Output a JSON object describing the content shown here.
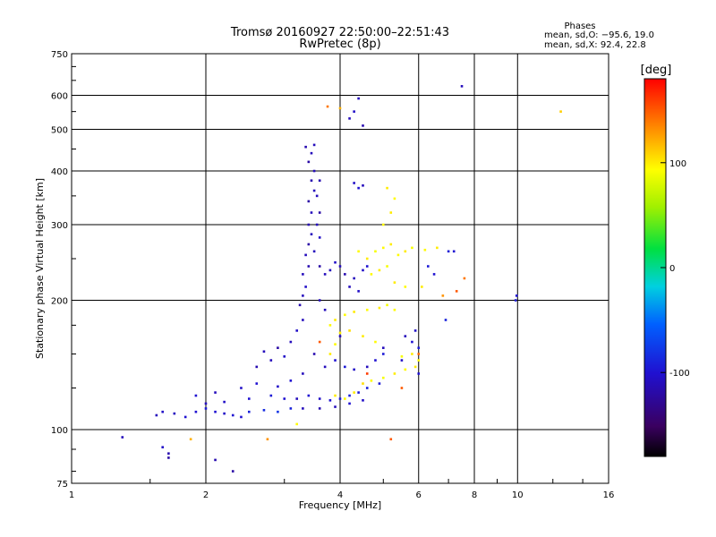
{
  "chart_data": {
    "type": "scatter",
    "title": "Tromsø 20160927 22:50:00–22:51:43",
    "subtitle": "RwPretec (8p)",
    "stats": {
      "heading": "Phases",
      "line1": "mean, sd,O: −95.6, 19.0",
      "line2": "mean, sd,X:  92.4, 22.8"
    },
    "xlabel": "Frequency [MHz]",
    "ylabel": "Stationary phase Virtual Height [km]",
    "x_scale": "log",
    "y_scale": "log",
    "xlim": [
      1,
      16
    ],
    "ylim": [
      75,
      750
    ],
    "x_ticks": [
      "1",
      "2",
      "4",
      "6",
      "8",
      "10",
      "16"
    ],
    "y_ticks": [
      "75",
      "100",
      "200",
      "300",
      "400",
      "500",
      "600",
      "750"
    ],
    "grid": true,
    "colorbar": {
      "label": "[deg]",
      "range": [
        -180,
        180
      ],
      "ticks": [
        "100",
        "0",
        "-100"
      ]
    },
    "series": [
      {
        "mode": "O",
        "mean_phase": -95.6,
        "points": [
          [
            1.3,
            96,
            -110
          ],
          [
            1.6,
            91,
            -105
          ],
          [
            1.65,
            88,
            -115
          ],
          [
            1.65,
            86,
            -120
          ],
          [
            2.1,
            85,
            -115
          ],
          [
            2.3,
            80,
            -120
          ],
          [
            1.55,
            108,
            -110
          ],
          [
            1.6,
            110,
            -105
          ],
          [
            1.7,
            109,
            -108
          ],
          [
            1.8,
            107,
            -100
          ],
          [
            1.9,
            110,
            -100
          ],
          [
            2.0,
            112,
            -95
          ],
          [
            2.1,
            110,
            -100
          ],
          [
            2.2,
            109,
            -105
          ],
          [
            2.3,
            108,
            -100
          ],
          [
            2.4,
            107,
            -100
          ],
          [
            2.5,
            110,
            -90
          ],
          [
            2.7,
            111,
            -85
          ],
          [
            2.9,
            110,
            -80
          ],
          [
            3.1,
            112,
            -90
          ],
          [
            2.0,
            115,
            -110
          ],
          [
            2.2,
            116,
            -105
          ],
          [
            2.5,
            118,
            -100
          ],
          [
            2.8,
            120,
            -95
          ],
          [
            3.0,
            118,
            -100
          ],
          [
            3.2,
            118,
            -110
          ],
          [
            1.9,
            120,
            -100
          ],
          [
            2.1,
            122,
            -110
          ],
          [
            2.4,
            125,
            -105
          ],
          [
            2.6,
            128,
            -100
          ],
          [
            2.9,
            126,
            -105
          ],
          [
            3.1,
            130,
            -100
          ],
          [
            3.3,
            135,
            -110
          ],
          [
            2.6,
            140,
            -115
          ],
          [
            2.8,
            145,
            -110
          ],
          [
            3.0,
            148,
            -105
          ],
          [
            2.7,
            152,
            -110
          ],
          [
            2.9,
            155,
            -120
          ],
          [
            3.1,
            160,
            -110
          ],
          [
            3.2,
            170,
            -105
          ],
          [
            3.3,
            180,
            -110
          ],
          [
            3.25,
            195,
            -115
          ],
          [
            3.3,
            205,
            -110
          ],
          [
            3.35,
            215,
            -105
          ],
          [
            3.3,
            230,
            -110
          ],
          [
            3.4,
            240,
            -115
          ],
          [
            3.35,
            255,
            -110
          ],
          [
            3.4,
            270,
            -120
          ],
          [
            3.45,
            285,
            -110
          ],
          [
            3.4,
            300,
            -115
          ],
          [
            3.45,
            320,
            -110
          ],
          [
            3.4,
            340,
            -120
          ],
          [
            3.5,
            360,
            -110
          ],
          [
            3.45,
            380,
            -115
          ],
          [
            3.5,
            400,
            -110
          ],
          [
            3.4,
            420,
            -120
          ],
          [
            3.45,
            440,
            -110
          ],
          [
            3.35,
            455,
            -115
          ],
          [
            3.5,
            460,
            -110
          ],
          [
            3.6,
            380,
            -115
          ],
          [
            3.55,
            350,
            -110
          ],
          [
            3.6,
            320,
            -120
          ],
          [
            3.55,
            300,
            -110
          ],
          [
            3.6,
            280,
            -105
          ],
          [
            3.5,
            260,
            -110
          ],
          [
            3.6,
            240,
            -120
          ],
          [
            3.7,
            230,
            -110
          ],
          [
            3.8,
            235,
            -110
          ],
          [
            3.9,
            245,
            -105
          ],
          [
            4.0,
            240,
            -110
          ],
          [
            4.1,
            230,
            -115
          ],
          [
            4.3,
            225,
            -110
          ],
          [
            4.5,
            235,
            -105
          ],
          [
            4.6,
            240,
            -100
          ],
          [
            4.2,
            215,
            -110
          ],
          [
            4.4,
            210,
            -105
          ],
          [
            3.6,
            200,
            -110
          ],
          [
            3.7,
            190,
            -110
          ],
          [
            3.5,
            150,
            -115
          ],
          [
            3.7,
            140,
            -110
          ],
          [
            3.9,
            145,
            -100
          ],
          [
            4.1,
            140,
            -95
          ],
          [
            4.3,
            138,
            -105
          ],
          [
            4.6,
            140,
            -110
          ],
          [
            4.8,
            145,
            -100
          ],
          [
            5.0,
            150,
            -95
          ],
          [
            3.4,
            120,
            -100
          ],
          [
            3.6,
            118,
            -105
          ],
          [
            3.8,
            117,
            -100
          ],
          [
            4.0,
            118,
            -95
          ],
          [
            4.2,
            120,
            -90
          ],
          [
            4.4,
            122,
            -95
          ],
          [
            4.6,
            125,
            -90
          ],
          [
            4.9,
            128,
            -95
          ],
          [
            3.3,
            112,
            -110
          ],
          [
            3.6,
            112,
            -115
          ],
          [
            3.9,
            113,
            -110
          ],
          [
            4.2,
            115,
            -100
          ],
          [
            4.5,
            117,
            -105
          ],
          [
            4.4,
            590,
            -110
          ],
          [
            4.3,
            550,
            -105
          ],
          [
            4.2,
            530,
            -110
          ],
          [
            4.5,
            510,
            -115
          ],
          [
            4.3,
            375,
            -105
          ],
          [
            4.5,
            370,
            -110
          ],
          [
            4.4,
            365,
            -100
          ],
          [
            5.6,
            165,
            -110
          ],
          [
            5.8,
            160,
            -100
          ],
          [
            6.0,
            155,
            -95
          ],
          [
            5.9,
            170,
            -105
          ],
          [
            7.5,
            630,
            -110
          ],
          [
            7.2,
            260,
            -100
          ],
          [
            9.9,
            200,
            -95
          ],
          [
            9.95,
            205,
            -100
          ],
          [
            6.3,
            240,
            -95
          ],
          [
            6.9,
            180,
            -90
          ],
          [
            6.5,
            230,
            -100
          ],
          [
            7.0,
            260,
            -95
          ],
          [
            6.0,
            135,
            -100
          ],
          [
            5.5,
            145,
            -105
          ],
          [
            5.0,
            155,
            -110
          ],
          [
            4.0,
            165,
            -110
          ]
        ]
      },
      {
        "mode": "X",
        "mean_phase": 92.4,
        "points": [
          [
            1.85,
            95,
            120
          ],
          [
            2.75,
            95,
            130
          ],
          [
            5.2,
            95,
            150
          ],
          [
            3.2,
            103,
            95
          ],
          [
            3.9,
            120,
            100
          ],
          [
            4.1,
            118,
            95
          ],
          [
            4.3,
            122,
            100
          ],
          [
            4.5,
            128,
            105
          ],
          [
            4.7,
            130,
            95
          ],
          [
            5.0,
            132,
            90
          ],
          [
            5.3,
            135,
            100
          ],
          [
            5.6,
            138,
            95
          ],
          [
            5.9,
            140,
            100
          ],
          [
            6.0,
            145,
            95
          ],
          [
            5.5,
            148,
            90
          ],
          [
            5.8,
            150,
            100
          ],
          [
            3.8,
            150,
            100
          ],
          [
            3.9,
            158,
            95
          ],
          [
            4.0,
            168,
            100
          ],
          [
            3.8,
            175,
            95
          ],
          [
            3.9,
            180,
            100
          ],
          [
            4.1,
            185,
            95
          ],
          [
            4.3,
            188,
            100
          ],
          [
            4.6,
            190,
            95
          ],
          [
            4.9,
            192,
            100
          ],
          [
            5.1,
            195,
            90
          ],
          [
            5.3,
            190,
            95
          ],
          [
            4.2,
            170,
            105
          ],
          [
            4.5,
            165,
            100
          ],
          [
            4.8,
            160,
            95
          ],
          [
            4.4,
            260,
            95
          ],
          [
            4.6,
            250,
            100
          ],
          [
            4.8,
            260,
            90
          ],
          [
            5.0,
            265,
            95
          ],
          [
            5.2,
            270,
            100
          ],
          [
            5.4,
            255,
            95
          ],
          [
            5.6,
            260,
            100
          ],
          [
            5.8,
            265,
            90
          ],
          [
            6.2,
            262,
            95
          ],
          [
            6.6,
            265,
            100
          ],
          [
            5.0,
            300,
            95
          ],
          [
            5.2,
            320,
            100
          ],
          [
            5.3,
            345,
            95
          ],
          [
            5.1,
            365,
            100
          ],
          [
            4.7,
            230,
            95
          ],
          [
            4.9,
            235,
            100
          ],
          [
            5.1,
            240,
            90
          ],
          [
            5.3,
            220,
            100
          ],
          [
            5.6,
            215,
            95
          ],
          [
            6.1,
            215,
            100
          ],
          [
            4.0,
            560,
            120
          ],
          [
            3.75,
            565,
            140
          ],
          [
            12.5,
            550,
            110
          ],
          [
            6.8,
            205,
            130
          ],
          [
            7.6,
            225,
            140
          ],
          [
            7.3,
            210,
            150
          ],
          [
            4.6,
            135,
            160
          ],
          [
            5.5,
            125,
            150
          ],
          [
            6.0,
            150,
            145
          ],
          [
            3.6,
            160,
            150
          ]
        ]
      }
    ]
  }
}
